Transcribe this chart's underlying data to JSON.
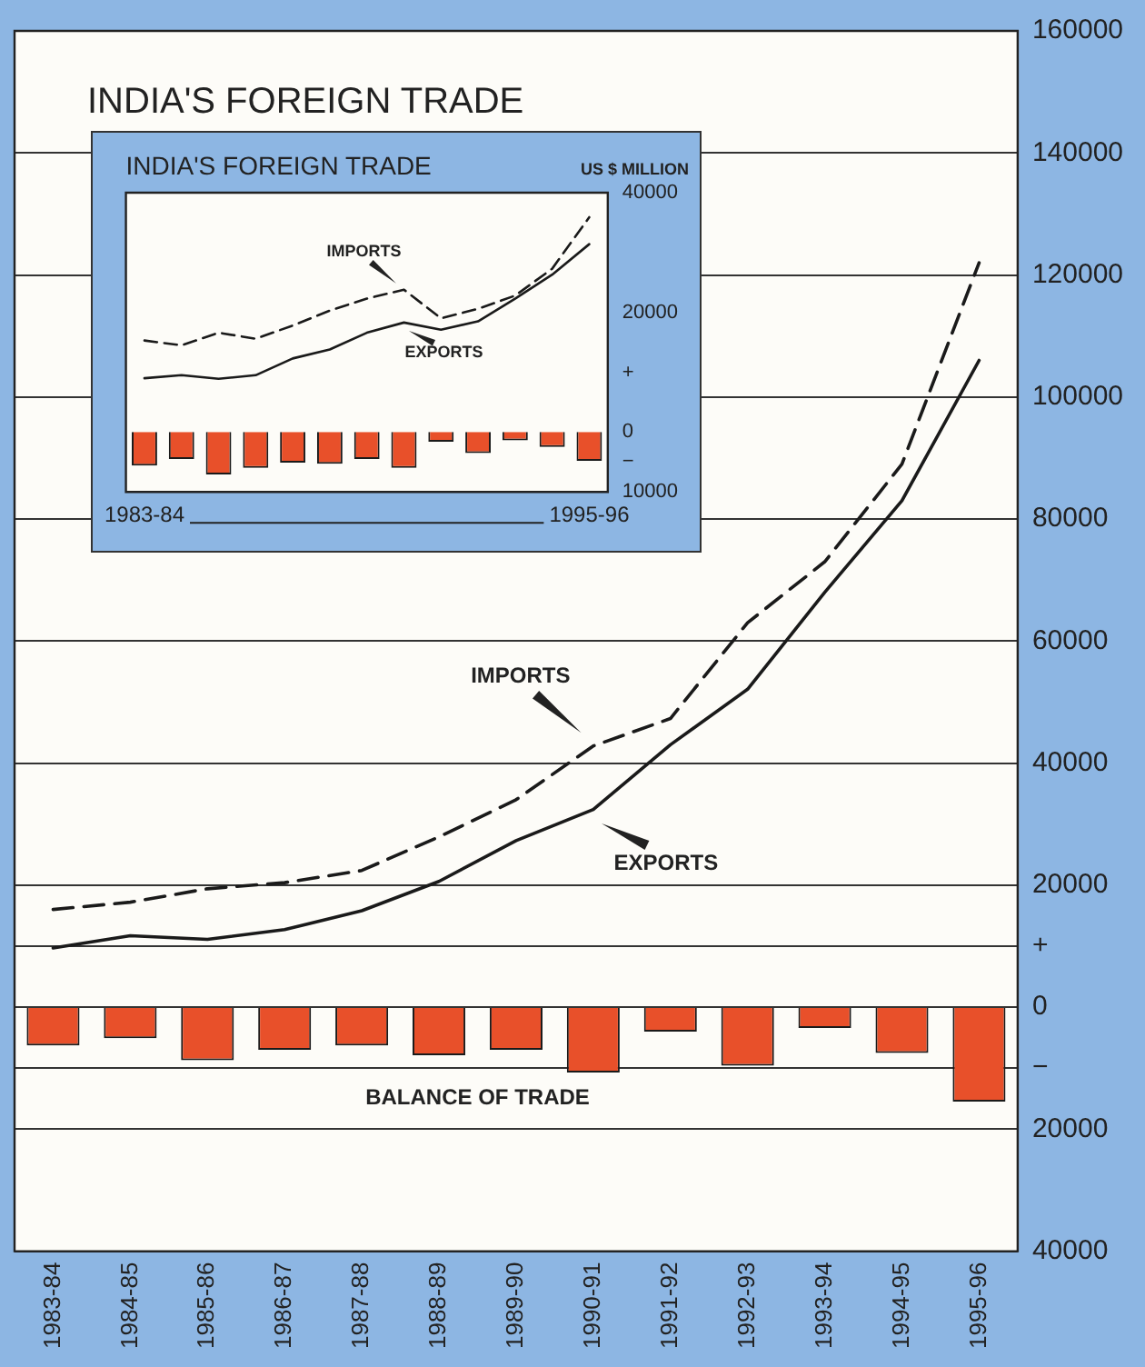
{
  "chart_data": [
    {
      "type": "line",
      "title": "INDIA'S FOREIGN TRADE",
      "categories": [
        "1983-84",
        "1984-85",
        "1985-86",
        "1986-87",
        "1987-88",
        "1988-89",
        "1989-90",
        "1990-91",
        "1991-92",
        "1992-93",
        "1993-94",
        "1994-95",
        "1995-96"
      ],
      "series": [
        {
          "name": "IMPORTS",
          "color": "#1a1a1a",
          "line_style": "dashed",
          "values": [
            16000,
            17200,
            19400,
            20400,
            22400,
            27900,
            34000,
            42800,
            47300,
            63000,
            73000,
            89000,
            122000
          ]
        },
        {
          "name": "EXPORTS",
          "color": "#1a1a1a",
          "line_style": "solid",
          "values": [
            9700,
            11700,
            11100,
            12700,
            15800,
            20600,
            27300,
            32400,
            43000,
            52100,
            68000,
            83000,
            106000
          ]
        },
        {
          "name": "BALANCE OF TRADE",
          "type": "bar",
          "color": "#e8502a",
          "values": [
            -6300,
            -5100,
            -8700,
            -7000,
            -6300,
            -7900,
            -7000,
            -10700,
            -4000,
            -9600,
            -3400,
            -7500,
            -15500
          ]
        }
      ],
      "ylim": [
        -40000,
        160000
      ],
      "yticks": [
        160000,
        140000,
        120000,
        100000,
        80000,
        60000,
        40000,
        20000,
        {
          "value": 10000,
          "label": "+"
        },
        0,
        {
          "value": -10000,
          "label": "−"
        },
        {
          "value": -20000,
          "label": "20000"
        },
        {
          "value": -40000,
          "label": "40000"
        }
      ],
      "grid": "y",
      "marker": "none"
    },
    {
      "type": "line",
      "title": "INDIA'S FOREIGN TRADE",
      "ylabel": "US $ MILLION",
      "categories": [
        "1983-84",
        null,
        null,
        null,
        null,
        null,
        null,
        null,
        null,
        null,
        null,
        null,
        "1995-96"
      ],
      "series": [
        {
          "name": "IMPORTS",
          "color": "#1a1a1a",
          "line_style": "dashed",
          "values": [
            15300,
            14500,
            16600,
            15600,
            17800,
            20300,
            22300,
            23800,
            19000,
            20600,
            22800,
            27300,
            35900
          ]
        },
        {
          "name": "EXPORTS",
          "color": "#1a1a1a",
          "line_style": "solid",
          "values": [
            9000,
            9500,
            8900,
            9500,
            12300,
            13800,
            16600,
            18300,
            17100,
            18500,
            22300,
            26300,
            31400
          ]
        },
        {
          "type": "bar",
          "color": "#e8502a",
          "values": [
            -5600,
            -4500,
            -7100,
            -6000,
            -5100,
            -5300,
            -4500,
            -6000,
            -1600,
            -3500,
            -1400,
            -2500,
            -4800
          ]
        }
      ],
      "ylim": [
        -10000,
        40000
      ],
      "yticks": [
        40000,
        20000,
        {
          "value": 10000,
          "label": "+"
        },
        0,
        {
          "value": -5000,
          "label": "−"
        },
        {
          "value": -10000,
          "label": "10000"
        }
      ],
      "grid": false,
      "marker": "none"
    }
  ]
}
